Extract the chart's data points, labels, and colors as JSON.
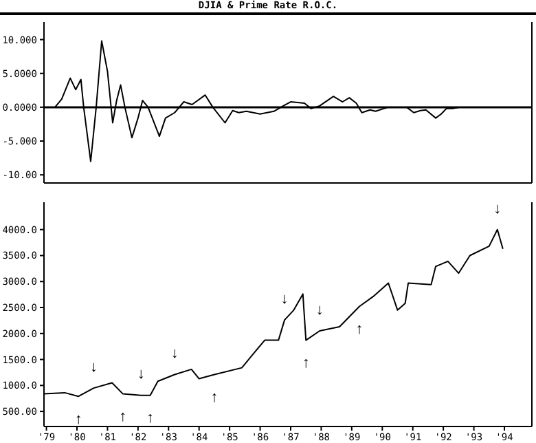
{
  "chart_data": [
    {
      "type": "line",
      "title": "DJIA & Prime Rate R.O.C.",
      "tick_labels": "y",
      "xlim": [
        1978.92,
        1994.9
      ],
      "ylim": [
        -11.2,
        12.6
      ],
      "yticks": [
        {
          "value": 10,
          "label": "10.000"
        },
        {
          "value": 5,
          "label": "5.0000"
        },
        {
          "value": 0,
          "label": "0.0000"
        },
        {
          "value": -5,
          "label": "-5.000"
        },
        {
          "value": -10,
          "label": "-10.00"
        }
      ],
      "ref_lines": [
        {
          "axis": "y",
          "value": 0,
          "color": "#000000"
        }
      ],
      "series": [
        {
          "color": "#000000",
          "x": [
            1979.28,
            1979.5,
            1979.78,
            1979.96,
            1980.13,
            1980.22,
            1980.45,
            1980.63,
            1980.81,
            1981.0,
            1981.17,
            1981.3,
            1981.43,
            1981.57,
            1981.8,
            1982.0,
            1982.15,
            1982.33,
            1982.7,
            1982.9,
            1983.2,
            1983.5,
            1983.77,
            1984.2,
            1984.45,
            1984.85,
            1985.1,
            1985.3,
            1985.55,
            1986.0,
            1986.45,
            1986.8,
            1987.0,
            1987.45,
            1987.67,
            1987.95,
            1988.4,
            1988.7,
            1988.92,
            1989.15,
            1989.33,
            1989.6,
            1989.78,
            1990.05,
            1990.2,
            1990.8,
            1991.03,
            1991.25,
            1991.43,
            1991.75,
            1991.93,
            1992.1,
            1992.3,
            1992.55
          ],
          "values": [
            0,
            1.2,
            4.3,
            2.6,
            4.1,
            0,
            -8,
            0,
            9.8,
            5.3,
            -2.3,
            1,
            3.3,
            0,
            -4.5,
            -1.6,
            1,
            0,
            -4.3,
            -1.6,
            -0.8,
            0.8,
            0.4,
            1.8,
            0,
            -2.3,
            -0.5,
            -0.8,
            -0.6,
            -1,
            -0.6,
            0.3,
            0.8,
            0.6,
            -0.2,
            0.2,
            1.6,
            0.8,
            1.4,
            0.6,
            -0.8,
            -0.4,
            -0.6,
            -0.2,
            0,
            0,
            -0.8,
            -0.5,
            -0.4,
            -1.6,
            -1,
            -0.2,
            -0.2,
            0
          ]
        }
      ]
    },
    {
      "type": "line",
      "xlim": [
        1978.92,
        1994.9
      ],
      "ylim": [
        210,
        4526
      ],
      "xticks": [
        {
          "value": 1979,
          "label": "'79"
        },
        {
          "value": 1980,
          "label": "'80"
        },
        {
          "value": 1981,
          "label": "'81"
        },
        {
          "value": 1982,
          "label": "'82"
        },
        {
          "value": 1983,
          "label": "'83"
        },
        {
          "value": 1984,
          "label": "'84"
        },
        {
          "value": 1985,
          "label": "'85"
        },
        {
          "value": 1986,
          "label": "'86"
        },
        {
          "value": 1987,
          "label": "'87"
        },
        {
          "value": 1988,
          "label": "'88"
        },
        {
          "value": 1989,
          "label": "'89"
        },
        {
          "value": 1990,
          "label": "'90"
        },
        {
          "value": 1991,
          "label": "'91"
        },
        {
          "value": 1992,
          "label": "'92"
        },
        {
          "value": 1993,
          "label": "'93"
        },
        {
          "value": 1994,
          "label": "'94"
        }
      ],
      "yticks": [
        {
          "value": 4000,
          "label": "4000.0"
        },
        {
          "value": 3500,
          "label": "3500.0"
        },
        {
          "value": 3000,
          "label": "3000.0"
        },
        {
          "value": 2500,
          "label": "2500.0"
        },
        {
          "value": 2000,
          "label": "2000.0"
        },
        {
          "value": 1500,
          "label": "1500.0"
        },
        {
          "value": 1000,
          "label": "1000.0"
        },
        {
          "value": 500,
          "label": "500.00"
        }
      ],
      "annotations": [
        {
          "text": "↓",
          "x": 1980.55,
          "y": 950
        },
        {
          "text": "↓",
          "x": 1982.1,
          "y": 810
        },
        {
          "text": "↓",
          "x": 1983.2,
          "y": 1210
        },
        {
          "text": "↑",
          "x": 1980.05,
          "y": 790
        },
        {
          "text": "↑",
          "x": 1981.5,
          "y": 840
        },
        {
          "text": "↑",
          "x": 1982.4,
          "y": 810
        },
        {
          "text": "↑",
          "x": 1984.5,
          "y": 1210
        },
        {
          "text": "↓",
          "x": 1986.8,
          "y": 2260
        },
        {
          "text": "↓",
          "x": 1987.95,
          "y": 2050
        },
        {
          "text": "↓",
          "x": 1993.77,
          "y": 4000
        },
        {
          "text": "↑",
          "x": 1987.5,
          "y": 1870
        },
        {
          "text": "↑",
          "x": 1989.25,
          "y": 2520
        }
      ],
      "series": [
        {
          "color": "#000000",
          "x": [
            1978.92,
            1979.6,
            1980.05,
            1980.55,
            1981.15,
            1981.5,
            1982.1,
            1982.4,
            1982.65,
            1983.2,
            1983.75,
            1984.0,
            1984.5,
            1985.4,
            1985.85,
            1986.15,
            1986.6,
            1986.8,
            1987.1,
            1987.4,
            1987.5,
            1987.95,
            1988.6,
            1989.25,
            1989.7,
            1990.2,
            1990.5,
            1990.75,
            1990.85,
            1991.6,
            1991.75,
            1992.15,
            1992.5,
            1992.87,
            1993.5,
            1993.77,
            1993.95
          ],
          "values": [
            840,
            860,
            790,
            950,
            1050,
            840,
            810,
            810,
            1080,
            1210,
            1310,
            1130,
            1210,
            1340,
            1660,
            1870,
            1870,
            2260,
            2450,
            2760,
            1870,
            2050,
            2130,
            2520,
            2710,
            2970,
            2450,
            2580,
            2970,
            2940,
            3290,
            3390,
            3160,
            3500,
            3680,
            4000,
            3630
          ]
        }
      ]
    }
  ]
}
